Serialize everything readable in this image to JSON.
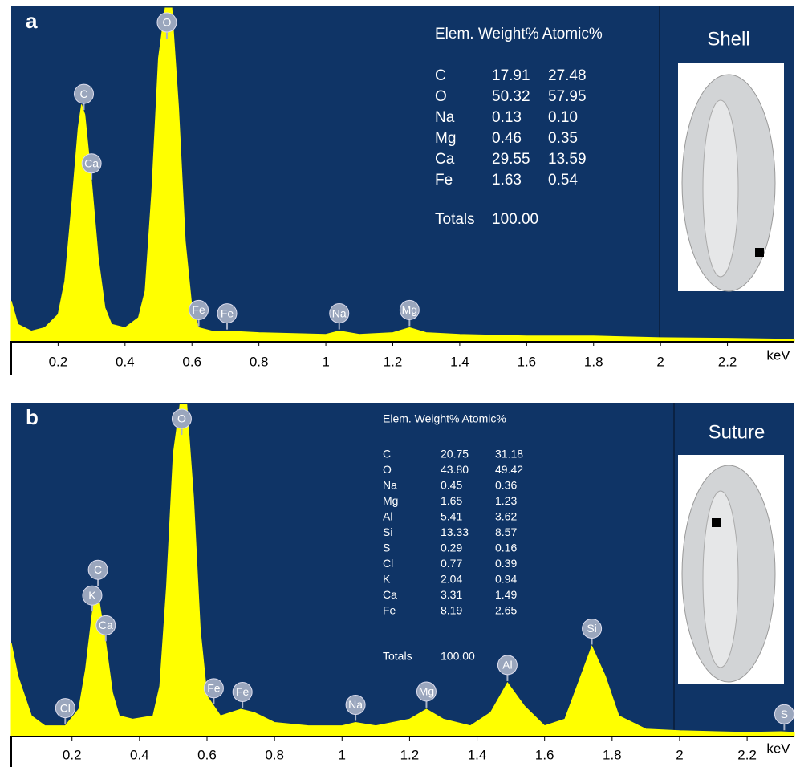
{
  "chart_data": [
    {
      "type": "area",
      "title": "a",
      "sample": "Shell",
      "x_label": "keV",
      "color": "#ffff00",
      "xlim": [
        0.06,
        2.4
      ],
      "xticks": [
        0.2,
        0.4,
        0.6,
        0.8,
        1,
        1.2,
        1.4,
        1.6,
        1.8,
        2,
        2.2
      ],
      "x": [
        0.06,
        0.08,
        0.12,
        0.16,
        0.2,
        0.22,
        0.24,
        0.26,
        0.27,
        0.28,
        0.3,
        0.32,
        0.34,
        0.36,
        0.4,
        0.44,
        0.46,
        0.48,
        0.5,
        0.52,
        0.54,
        0.56,
        0.58,
        0.6,
        0.62,
        0.66,
        0.7,
        0.8,
        1.0,
        1.04,
        1.1,
        1.2,
        1.25,
        1.3,
        1.4,
        1.6,
        1.8,
        2.0,
        2.2,
        2.4
      ],
      "values": [
        12,
        5,
        3,
        4,
        8,
        18,
        40,
        64,
        71,
        68,
        48,
        25,
        10,
        5,
        4,
        7,
        15,
        45,
        85,
        100,
        100,
        70,
        30,
        10,
        4,
        3,
        3,
        2.5,
        2,
        3,
        2,
        2.5,
        4,
        2.5,
        2,
        1.5,
        1.5,
        1,
        0.8,
        0.5
      ],
      "peaks": [
        {
          "label": "Ca",
          "x": 0.3
        },
        {
          "label": "C",
          "x": 0.277
        },
        {
          "label": "O",
          "x": 0.525
        },
        {
          "label": "Fe",
          "x": 0.62
        },
        {
          "label": "Fe",
          "x": 0.705
        },
        {
          "label": "Na",
          "x": 1.04
        },
        {
          "label": "Mg",
          "x": 1.25
        }
      ],
      "table": {
        "header": "Elem. Weight% Atomic%",
        "rows": [
          [
            "C",
            "17.91",
            "27.48"
          ],
          [
            "O",
            "50.32",
            "57.95"
          ],
          [
            "Na",
            "0.13",
            "0.10"
          ],
          [
            "Mg",
            "0.46",
            "0.35"
          ],
          [
            "Ca",
            "29.55",
            "13.59"
          ],
          [
            "Fe",
            "1.63",
            "0.54"
          ]
        ],
        "totals_label": "Totals",
        "totals": "100.00"
      }
    },
    {
      "type": "area",
      "title": "b",
      "sample": "Suture",
      "x_label": "keV",
      "color": "#ffff00",
      "xlim": [
        0.02,
        2.34
      ],
      "xticks": [
        0.2,
        0.4,
        0.6,
        0.8,
        1,
        1.2,
        1.4,
        1.6,
        1.8,
        2,
        2.2
      ],
      "x": [
        0.02,
        0.04,
        0.08,
        0.12,
        0.18,
        0.22,
        0.24,
        0.26,
        0.27,
        0.28,
        0.3,
        0.32,
        0.34,
        0.38,
        0.44,
        0.46,
        0.48,
        0.5,
        0.52,
        0.54,
        0.56,
        0.58,
        0.6,
        0.64,
        0.7,
        0.74,
        0.8,
        0.9,
        1.0,
        1.04,
        1.1,
        1.2,
        1.25,
        1.3,
        1.38,
        1.44,
        1.49,
        1.54,
        1.6,
        1.66,
        1.7,
        1.74,
        1.78,
        1.82,
        1.9,
        2.0,
        2.2,
        2.3,
        2.34
      ],
      "values": [
        28,
        18,
        6,
        3,
        3,
        8,
        20,
        37,
        43,
        41,
        28,
        13,
        6,
        5,
        6,
        15,
        45,
        85,
        100,
        100,
        72,
        32,
        12,
        6,
        8,
        7,
        4,
        3,
        3,
        4,
        3,
        5,
        8,
        5,
        3,
        7,
        16,
        9,
        3,
        5,
        16,
        27,
        18,
        6,
        2,
        1.5,
        1,
        1.2,
        1
      ],
      "peaks": [
        {
          "label": "Cl",
          "x": 0.18
        },
        {
          "label": "Ca",
          "x": 0.3
        },
        {
          "label": "K",
          "x": 0.26
        },
        {
          "label": "C",
          "x": 0.277
        },
        {
          "label": "O",
          "x": 0.525
        },
        {
          "label": "Fe",
          "x": 0.62
        },
        {
          "label": "Fe",
          "x": 0.705
        },
        {
          "label": "Na",
          "x": 1.04
        },
        {
          "label": "Mg",
          "x": 1.25
        },
        {
          "label": "Al",
          "x": 1.49
        },
        {
          "label": "Si",
          "x": 1.74
        },
        {
          "label": "S",
          "x": 2.31
        }
      ],
      "table": {
        "header": "Elem. Weight% Atomic%",
        "rows": [
          [
            "C",
            "20.75",
            "31.18"
          ],
          [
            "O",
            "43.80",
            "49.42"
          ],
          [
            "Na",
            "0.45",
            "0.36"
          ],
          [
            "Mg",
            "1.65",
            "1.23"
          ],
          [
            "Al",
            "5.41",
            "3.62"
          ],
          [
            "Si",
            "13.33",
            "8.57"
          ],
          [
            "S",
            "0.29",
            "0.16"
          ],
          [
            "Cl",
            "0.77",
            "0.39"
          ],
          [
            "K",
            "2.04",
            "0.94"
          ],
          [
            "Ca",
            "3.31",
            "1.49"
          ],
          [
            "Fe",
            "8.19",
            "2.65"
          ]
        ],
        "totals_label": "Totals",
        "totals": "100.00"
      }
    }
  ]
}
